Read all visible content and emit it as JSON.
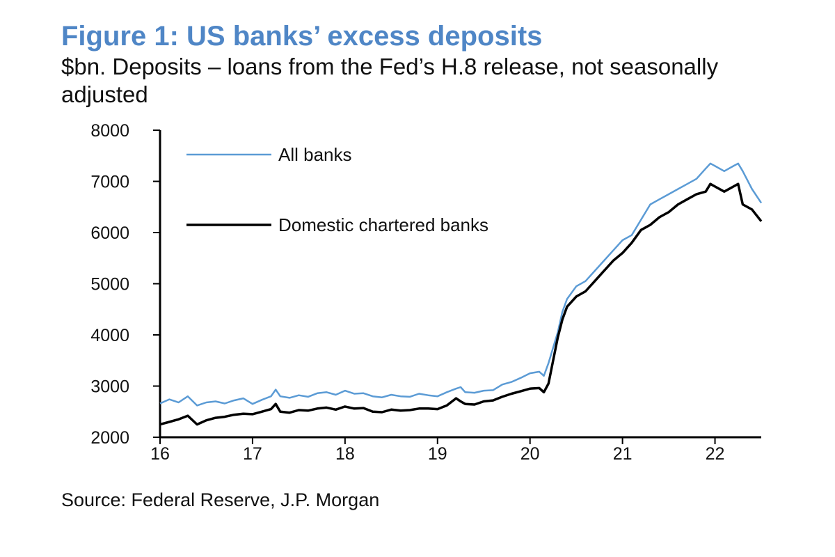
{
  "header": {
    "title": "Figure 1: US banks’ excess deposits",
    "subtitle": "$bn. Deposits – loans from the Fed’s H.8 release, not seasonally adjusted"
  },
  "footer": {
    "source": "Source: Federal Reserve, J.P. Morgan"
  },
  "chart_data": {
    "type": "line",
    "title": "Figure 1: US banks’ excess deposits",
    "ylabel": "",
    "xlabel": "",
    "ylim": [
      2000,
      8000
    ],
    "xlim": [
      2016,
      2022.5
    ],
    "grid": false,
    "legend_position": "top-left",
    "y_ticks": [
      {
        "value": 2000,
        "label": "2000"
      },
      {
        "value": 3000,
        "label": "3000"
      },
      {
        "value": 4000,
        "label": "4000"
      },
      {
        "value": 5000,
        "label": "5000"
      },
      {
        "value": 6000,
        "label": "6000"
      },
      {
        "value": 7000,
        "label": "7000"
      },
      {
        "value": 8000,
        "label": "8000"
      }
    ],
    "x_ticks": [
      {
        "value": 2016,
        "label": "16"
      },
      {
        "value": 2017,
        "label": "17"
      },
      {
        "value": 2018,
        "label": "18"
      },
      {
        "value": 2019,
        "label": "19"
      },
      {
        "value": 2020,
        "label": "20"
      },
      {
        "value": 2021,
        "label": "21"
      },
      {
        "value": 2022,
        "label": "22"
      }
    ],
    "series": [
      {
        "name": "All banks",
        "color": "#5b9bd5",
        "x": [
          2016.0,
          2016.1,
          2016.2,
          2016.3,
          2016.4,
          2016.5,
          2016.6,
          2016.7,
          2016.8,
          2016.9,
          2017.0,
          2017.1,
          2017.2,
          2017.25,
          2017.3,
          2017.4,
          2017.5,
          2017.6,
          2017.7,
          2017.8,
          2017.9,
          2018.0,
          2018.1,
          2018.2,
          2018.3,
          2018.4,
          2018.5,
          2018.6,
          2018.7,
          2018.8,
          2018.9,
          2019.0,
          2019.1,
          2019.2,
          2019.25,
          2019.3,
          2019.4,
          2019.5,
          2019.6,
          2019.7,
          2019.8,
          2019.9,
          2020.0,
          2020.1,
          2020.15,
          2020.2,
          2020.25,
          2020.3,
          2020.35,
          2020.4,
          2020.5,
          2020.6,
          2020.7,
          2020.8,
          2020.9,
          2021.0,
          2021.1,
          2021.2,
          2021.3,
          2021.4,
          2021.5,
          2021.6,
          2021.7,
          2021.8,
          2021.9,
          2021.95,
          2022.0,
          2022.1,
          2022.2,
          2022.25,
          2022.3,
          2022.4,
          2022.5
        ],
        "values": [
          2660,
          2740,
          2680,
          2800,
          2620,
          2680,
          2700,
          2660,
          2720,
          2760,
          2650,
          2730,
          2800,
          2930,
          2800,
          2770,
          2820,
          2790,
          2860,
          2880,
          2830,
          2910,
          2850,
          2860,
          2800,
          2780,
          2830,
          2800,
          2790,
          2850,
          2820,
          2800,
          2880,
          2950,
          2980,
          2880,
          2870,
          2910,
          2920,
          3030,
          3080,
          3160,
          3250,
          3280,
          3200,
          3450,
          3750,
          4050,
          4450,
          4700,
          4950,
          5050,
          5250,
          5450,
          5650,
          5850,
          5950,
          6250,
          6550,
          6650,
          6750,
          6850,
          6950,
          7050,
          7250,
          7350,
          7300,
          7200,
          7300,
          7350,
          7200,
          6850,
          6580
        ]
      },
      {
        "name": "Domestic chartered banks",
        "color": "#000000",
        "x": [
          2016.0,
          2016.1,
          2016.2,
          2016.3,
          2016.4,
          2016.5,
          2016.6,
          2016.7,
          2016.8,
          2016.9,
          2017.0,
          2017.1,
          2017.2,
          2017.25,
          2017.3,
          2017.4,
          2017.5,
          2017.6,
          2017.7,
          2017.8,
          2017.9,
          2018.0,
          2018.1,
          2018.2,
          2018.3,
          2018.4,
          2018.5,
          2018.6,
          2018.7,
          2018.8,
          2018.9,
          2019.0,
          2019.1,
          2019.2,
          2019.25,
          2019.3,
          2019.4,
          2019.5,
          2019.6,
          2019.7,
          2019.8,
          2019.9,
          2020.0,
          2020.1,
          2020.15,
          2020.2,
          2020.25,
          2020.3,
          2020.35,
          2020.4,
          2020.5,
          2020.6,
          2020.7,
          2020.8,
          2020.9,
          2021.0,
          2021.1,
          2021.2,
          2021.3,
          2021.4,
          2021.5,
          2021.6,
          2021.7,
          2021.8,
          2021.9,
          2021.95,
          2022.0,
          2022.1,
          2022.2,
          2022.25,
          2022.3,
          2022.4,
          2022.5
        ],
        "values": [
          2250,
          2300,
          2350,
          2420,
          2250,
          2330,
          2380,
          2400,
          2440,
          2460,
          2450,
          2500,
          2550,
          2650,
          2500,
          2480,
          2530,
          2520,
          2560,
          2580,
          2540,
          2600,
          2560,
          2570,
          2500,
          2490,
          2540,
          2520,
          2530,
          2560,
          2560,
          2550,
          2620,
          2760,
          2700,
          2650,
          2640,
          2700,
          2720,
          2790,
          2850,
          2900,
          2950,
          2960,
          2880,
          3050,
          3500,
          3950,
          4300,
          4550,
          4750,
          4850,
          5050,
          5250,
          5450,
          5600,
          5800,
          6050,
          6150,
          6300,
          6400,
          6550,
          6650,
          6750,
          6800,
          6950,
          6900,
          6800,
          6900,
          6950,
          6550,
          6450,
          6220
        ]
      }
    ]
  }
}
